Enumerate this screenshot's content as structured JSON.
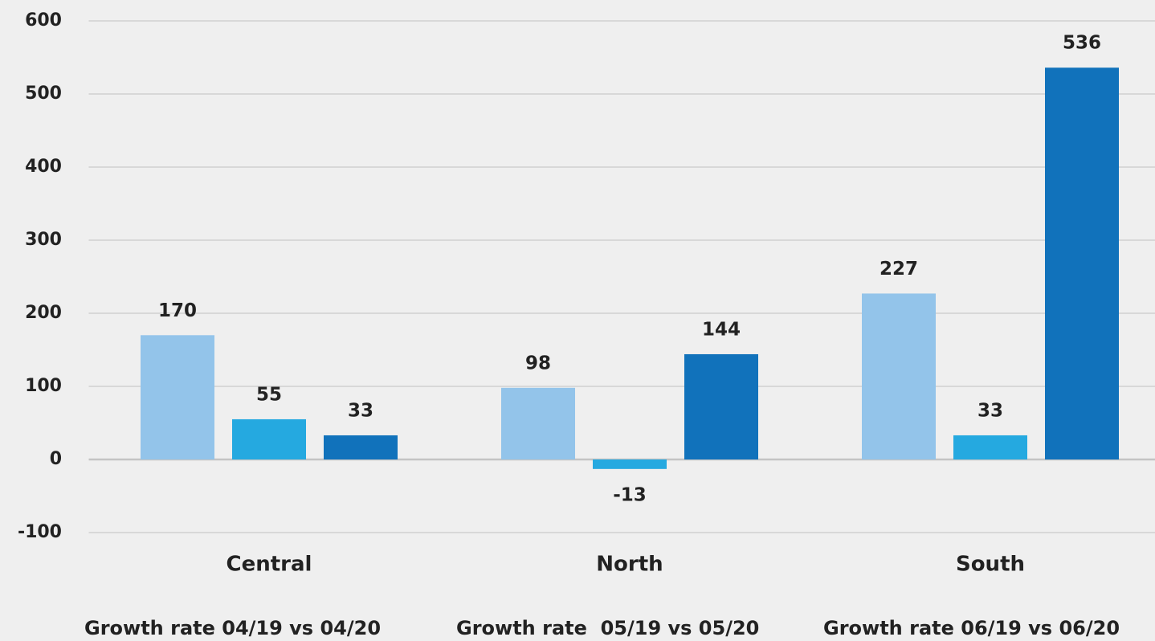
{
  "chart_data": {
    "type": "bar",
    "categories": [
      "Central",
      "North",
      "South"
    ],
    "series": [
      {
        "name": "Growth rate 04/19 vs 04/20",
        "color": "#93c4ea",
        "values": [
          170,
          98,
          227
        ]
      },
      {
        "name": "Growth rate  05/19 vs 05/20",
        "color": "#25a9e0",
        "values": [
          55,
          -13,
          33
        ]
      },
      {
        "name": "Growth rate 06/19 vs 06/20",
        "color": "#1172bb",
        "values": [
          33,
          144,
          536
        ]
      }
    ],
    "ylim": [
      -100,
      600
    ],
    "yticks": [
      -100,
      0,
      100,
      200,
      300,
      400,
      500,
      600
    ],
    "grid": true,
    "legend": "bottom"
  }
}
